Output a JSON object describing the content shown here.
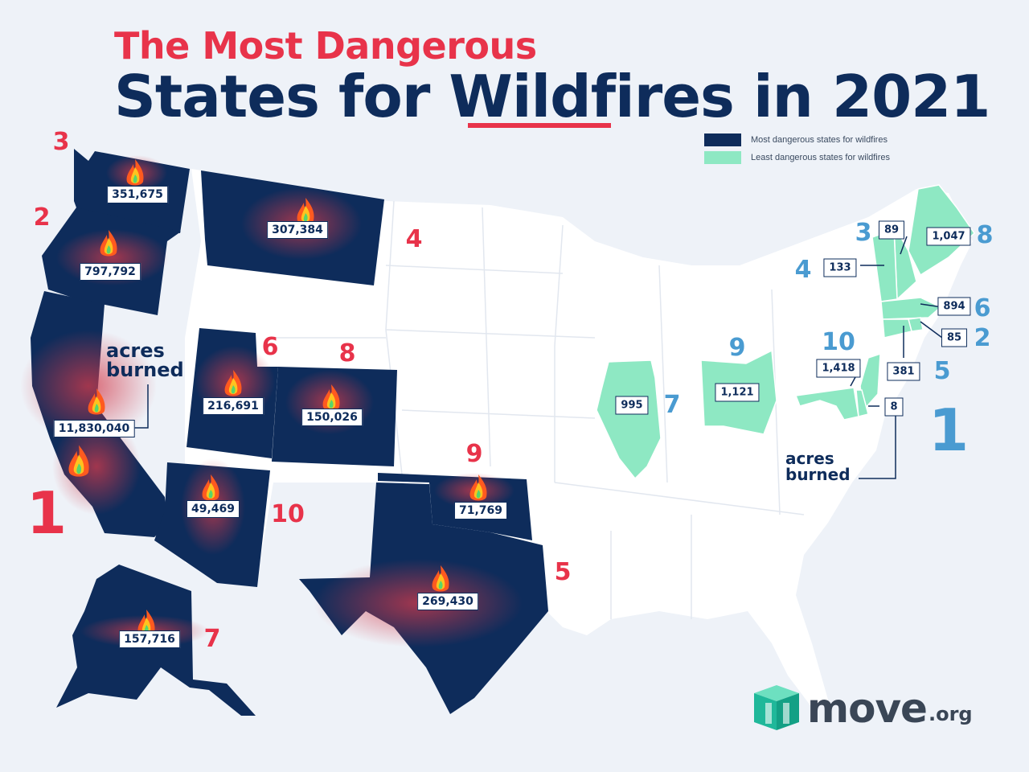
{
  "title": {
    "line1": "The Most Dangerous",
    "line2": "States for Wildfires in 2021"
  },
  "legend": {
    "most": "Most dangerous states for wildfires",
    "least": "Least dangerous states for wildfires"
  },
  "colors": {
    "most": "#0e2c5b",
    "least": "#8ee8c3",
    "other_states": "#ffffff",
    "rank_most": "#e8334a",
    "rank_least": "#4a9bd1",
    "fire_glow": "#c0334a"
  },
  "acres_label": "acres burned",
  "most_dangerous": [
    {
      "state": "California",
      "rank": "1",
      "acres": "11,830,040"
    },
    {
      "state": "Oregon",
      "rank": "2",
      "acres": "797,792"
    },
    {
      "state": "Washington",
      "rank": "3",
      "acres": "351,675"
    },
    {
      "state": "Montana",
      "rank": "4",
      "acres": "307,384"
    },
    {
      "state": "Texas",
      "rank": "5",
      "acres": "269,430"
    },
    {
      "state": "Utah",
      "rank": "6",
      "acres": "216,691"
    },
    {
      "state": "Alaska",
      "rank": "7",
      "acres": "157,716"
    },
    {
      "state": "Colorado",
      "rank": "8",
      "acres": "150,026"
    },
    {
      "state": "Oklahoma",
      "rank": "9",
      "acres": "71,769"
    },
    {
      "state": "Arizona",
      "rank": "10",
      "acres": "49,469"
    }
  ],
  "least_dangerous": [
    {
      "state": "Delaware",
      "rank": "1",
      "acres": "8"
    },
    {
      "state": "Rhode Island",
      "rank": "2",
      "acres": "85"
    },
    {
      "state": "New Hampshire",
      "rank": "3",
      "acres": "89"
    },
    {
      "state": "Vermont",
      "rank": "4",
      "acres": "133"
    },
    {
      "state": "New Jersey",
      "rank": "5",
      "acres": "381"
    },
    {
      "state": "Massachusetts",
      "rank": "6",
      "acres": "894"
    },
    {
      "state": "Illinois",
      "rank": "7",
      "acres": "995"
    },
    {
      "state": "Maine",
      "rank": "8",
      "acres": "1,047"
    },
    {
      "state": "Ohio",
      "rank": "9",
      "acres": "1,121"
    },
    {
      "state": "Maryland",
      "rank": "10",
      "acres": "1,418"
    }
  ],
  "logo": {
    "name": "move",
    "suffix": ".org"
  }
}
